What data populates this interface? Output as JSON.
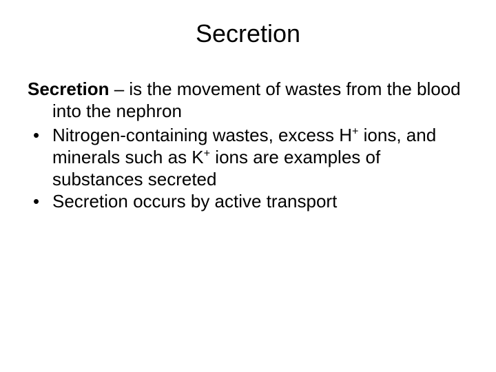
{
  "title": "Secretion",
  "definition": {
    "term": "Secretion",
    "text": " – is the movement of wastes from the blood into the nephron"
  },
  "bullets": [
    {
      "pre": "Nitrogen-containing wastes, excess H",
      "sup1": "+",
      "mid": " ions, and minerals such as K",
      "sup2": "+",
      "post": " ions are examples of substances secreted"
    },
    {
      "text": "Secretion occurs by active transport"
    }
  ]
}
